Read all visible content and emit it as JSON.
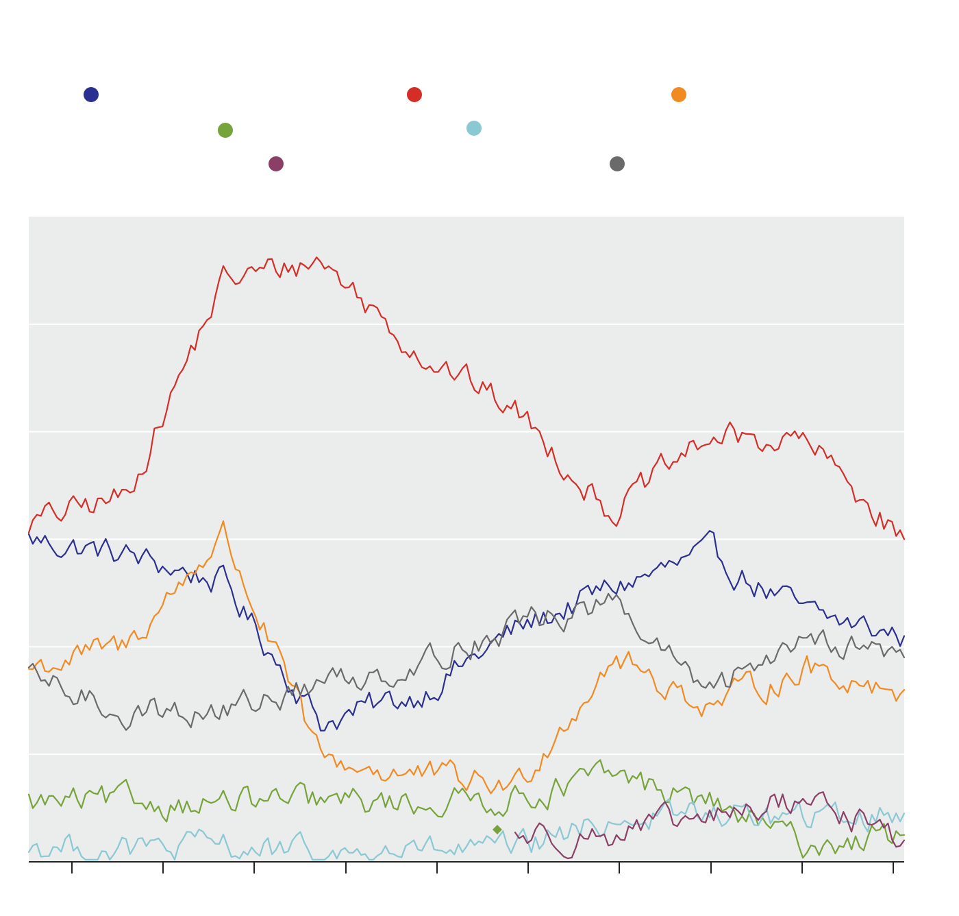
{
  "chart_data": {
    "type": "line",
    "title": "",
    "xlabel": "",
    "ylabel": "",
    "ylim": [
      0,
      6
    ],
    "grid": true,
    "legend": "top",
    "x": [
      0,
      1,
      2,
      3,
      4,
      5,
      6,
      7,
      8,
      9
    ],
    "series": [
      {
        "color": "#2b2f8f",
        "values": [
          3.0,
          2.85,
          2.6,
          1.3,
          1.55,
          2.15,
          2.55,
          2.85,
          2.3,
          2.1
        ]
      },
      {
        "color": "#d42e27",
        "values": [
          3.15,
          3.4,
          5.4,
          5.6,
          4.75,
          4.2,
          3.25,
          3.95,
          3.9,
          3.0
        ]
      },
      {
        "color": "#f28a22",
        "values": [
          1.8,
          2.0,
          3.05,
          0.95,
          0.8,
          0.7,
          1.9,
          1.45,
          1.8,
          1.6
        ]
      },
      {
        "color": "#76a33a",
        "values": [
          0.55,
          0.55,
          0.55,
          0.55,
          0.55,
          0.6,
          0.8,
          0.55,
          0.15,
          0.25
        ]
      },
      {
        "color": "#8ac8d4",
        "values": [
          0.15,
          0.1,
          0.15,
          0.05,
          0.1,
          0.1,
          0.4,
          0.45,
          0.4,
          0.45
        ]
      },
      {
        "color": "#8b3f66",
        "values": [
          null,
          null,
          null,
          null,
          null,
          0.25,
          0.25,
          0.4,
          0.6,
          0.2
        ]
      },
      {
        "color": "#6a6a6a",
        "values": [
          1.7,
          1.4,
          1.4,
          1.65,
          1.85,
          2.2,
          2.4,
          1.55,
          2.15,
          1.9
        ]
      }
    ]
  }
}
